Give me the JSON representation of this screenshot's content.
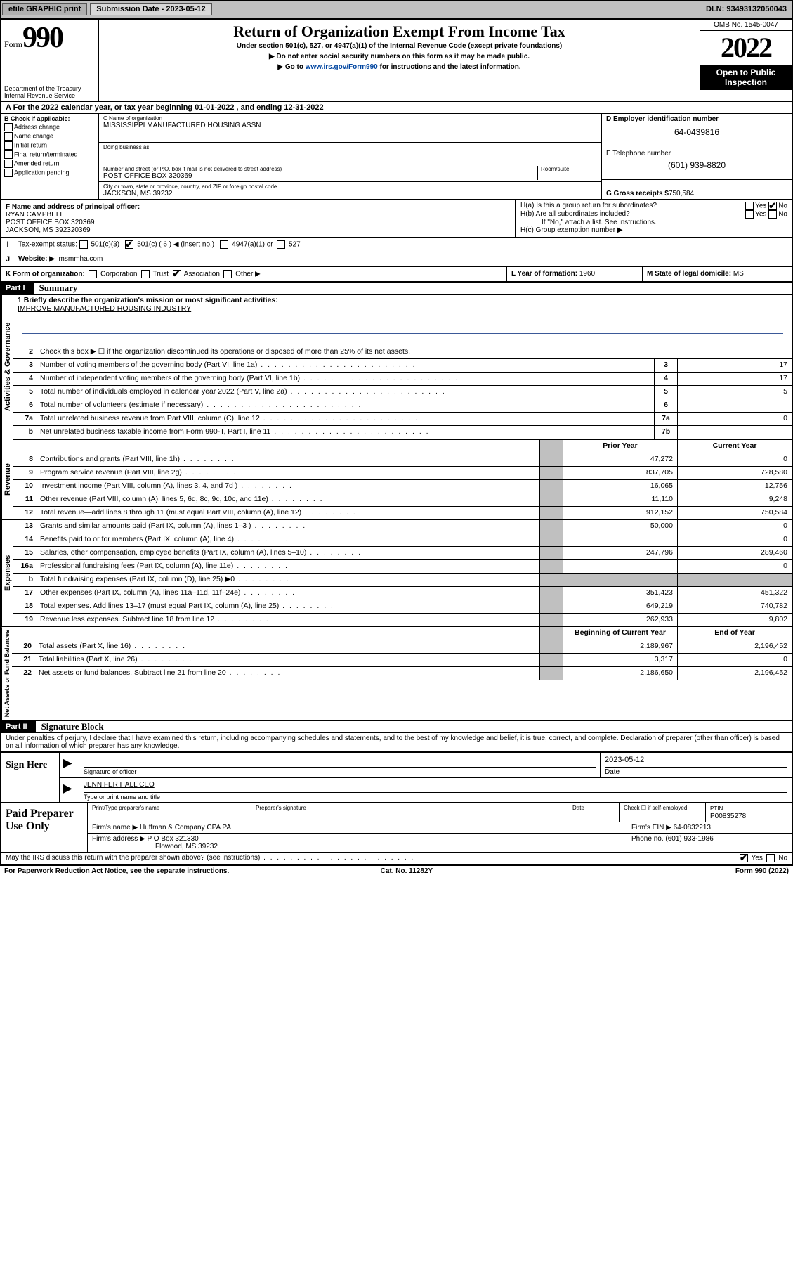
{
  "topbar": {
    "efile": "efile GRAPHIC print",
    "submission_label": "Submission Date - ",
    "submission_date": "2023-05-12",
    "dln_label": "DLN: ",
    "dln": "93493132050043"
  },
  "header": {
    "form_word": "Form",
    "form_num": "990",
    "dept": "Department of the Treasury\nInternal Revenue Service",
    "title": "Return of Organization Exempt From Income Tax",
    "sub1": "Under section 501(c), 527, or 4947(a)(1) of the Internal Revenue Code (except private foundations)",
    "sub2": "Do not enter social security numbers on this form as it may be made public.",
    "sub3_pre": "Go to ",
    "sub3_link": "www.irs.gov/Form990",
    "sub3_post": " for instructions and the latest information.",
    "omb": "OMB No. 1545-0047",
    "year": "2022",
    "open_public": "Open to Public Inspection"
  },
  "secA": {
    "text_pre": "A For the 2022 calendar year, or tax year beginning ",
    "begin": "01-01-2022",
    "mid": " , and ending ",
    "end": "12-31-2022"
  },
  "colB": {
    "title": "B Check if applicable:",
    "opts": [
      "Address change",
      "Name change",
      "Initial return",
      "Final return/terminated",
      "Amended return",
      "Application pending"
    ]
  },
  "colC": {
    "name_lbl": "C Name of organization",
    "name": "MISSISSIPPI MANUFACTURED HOUSING ASSN",
    "dba_lbl": "Doing business as",
    "addr_lbl": "Number and street (or P.O. box if mail is not delivered to street address)",
    "room_lbl": "Room/suite",
    "addr": "POST OFFICE BOX 320369",
    "city_lbl": "City or town, state or province, country, and ZIP or foreign postal code",
    "city": "JACKSON, MS  39232"
  },
  "colD": {
    "ein_lbl": "D Employer identification number",
    "ein": "64-0439816",
    "tel_lbl": "E Telephone number",
    "tel": "(601) 939-8820",
    "gross_lbl": "G Gross receipts $ ",
    "gross": "750,584"
  },
  "rowF": {
    "lbl": "F Name and address of principal officer:",
    "name": "RYAN CAMPBELL",
    "addr1": "POST OFFICE BOX 320369",
    "addr2": "JACKSON, MS  392320369"
  },
  "rowH": {
    "ha": "H(a)  Is this a group return for subordinates?",
    "hb": "H(b)  Are all subordinates included?",
    "hb2": "If \"No,\" attach a list. See instructions.",
    "hc": "H(c)  Group exemption number ▶"
  },
  "rowI": {
    "lbl": "Tax-exempt status:",
    "opts": [
      "501(c)(3)",
      "501(c) ( 6 ) ◀ (insert no.)",
      "4947(a)(1) or",
      "527"
    ]
  },
  "rowJ": {
    "lbl": "Website: ▶",
    "val": "msmmha.com"
  },
  "rowK": {
    "lbl": "K Form of organization:",
    "opts": [
      "Corporation",
      "Trust",
      "Association",
      "Other ▶"
    ],
    "L": "L Year of formation: ",
    "Lval": "1960",
    "M": "M State of legal domicile: ",
    "Mval": "MS"
  },
  "part1": {
    "hdr": "Part I",
    "title": "Summary",
    "mission_lbl": "1  Briefly describe the organization's mission or most significant activities:",
    "mission": "IMPROVE MANUFACTURED HOUSING INDUSTRY",
    "line2": "Check this box ▶ ☐  if the organization discontinued its operations or disposed of more than 25% of its net assets.",
    "gov_label": "Activities & Governance",
    "rev_label": "Revenue",
    "exp_label": "Expenses",
    "nab_label": "Net Assets or Fund Balances",
    "gov_lines": [
      {
        "n": "3",
        "d": "Number of voting members of the governing body (Part VI, line 1a)",
        "r": "3",
        "v": "17"
      },
      {
        "n": "4",
        "d": "Number of independent voting members of the governing body (Part VI, line 1b)",
        "r": "4",
        "v": "17"
      },
      {
        "n": "5",
        "d": "Total number of individuals employed in calendar year 2022 (Part V, line 2a)",
        "r": "5",
        "v": "5"
      },
      {
        "n": "6",
        "d": "Total number of volunteers (estimate if necessary)",
        "r": "6",
        "v": ""
      },
      {
        "n": "7a",
        "d": "Total unrelated business revenue from Part VIII, column (C), line 12",
        "r": "7a",
        "v": "0"
      },
      {
        "n": "b",
        "d": "Net unrelated business taxable income from Form 990-T, Part I, line 11",
        "r": "7b",
        "v": ""
      }
    ],
    "col_hdr": {
      "py": "Prior Year",
      "cy": "Current Year"
    },
    "rev_lines": [
      {
        "n": "8",
        "d": "Contributions and grants (Part VIII, line 1h)",
        "py": "47,272",
        "cy": "0"
      },
      {
        "n": "9",
        "d": "Program service revenue (Part VIII, line 2g)",
        "py": "837,705",
        "cy": "728,580"
      },
      {
        "n": "10",
        "d": "Investment income (Part VIII, column (A), lines 3, 4, and 7d )",
        "py": "16,065",
        "cy": "12,756"
      },
      {
        "n": "11",
        "d": "Other revenue (Part VIII, column (A), lines 5, 6d, 8c, 9c, 10c, and 11e)",
        "py": "11,110",
        "cy": "9,248"
      },
      {
        "n": "12",
        "d": "Total revenue—add lines 8 through 11 (must equal Part VIII, column (A), line 12)",
        "py": "912,152",
        "cy": "750,584"
      }
    ],
    "exp_lines": [
      {
        "n": "13",
        "d": "Grants and similar amounts paid (Part IX, column (A), lines 1–3 )",
        "py": "50,000",
        "cy": "0"
      },
      {
        "n": "14",
        "d": "Benefits paid to or for members (Part IX, column (A), line 4)",
        "py": "",
        "cy": "0"
      },
      {
        "n": "15",
        "d": "Salaries, other compensation, employee benefits (Part IX, column (A), lines 5–10)",
        "py": "247,796",
        "cy": "289,460"
      },
      {
        "n": "16a",
        "d": "Professional fundraising fees (Part IX, column (A), line 11e)",
        "py": "",
        "cy": "0"
      },
      {
        "n": "b",
        "d": "Total fundraising expenses (Part IX, column (D), line 25) ▶0",
        "py": "GRAY",
        "cy": "GRAY"
      },
      {
        "n": "17",
        "d": "Other expenses (Part IX, column (A), lines 11a–11d, 11f–24e)",
        "py": "351,423",
        "cy": "451,322"
      },
      {
        "n": "18",
        "d": "Total expenses. Add lines 13–17 (must equal Part IX, column (A), line 25)",
        "py": "649,219",
        "cy": "740,782"
      },
      {
        "n": "19",
        "d": "Revenue less expenses. Subtract line 18 from line 12",
        "py": "262,933",
        "cy": "9,802"
      }
    ],
    "nab_hdr": {
      "b": "Beginning of Current Year",
      "e": "End of Year"
    },
    "nab_lines": [
      {
        "n": "20",
        "d": "Total assets (Part X, line 16)",
        "b": "2,189,967",
        "e": "2,196,452"
      },
      {
        "n": "21",
        "d": "Total liabilities (Part X, line 26)",
        "b": "3,317",
        "e": "0"
      },
      {
        "n": "22",
        "d": "Net assets or fund balances. Subtract line 21 from line 20",
        "b": "2,186,650",
        "e": "2,196,452"
      }
    ]
  },
  "part2": {
    "hdr": "Part II",
    "title": "Signature Block",
    "penalty": "Under penalties of perjury, I declare that I have examined this return, including accompanying schedules and statements, and to the best of my knowledge and belief, it is true, correct, and complete. Declaration of preparer (other than officer) is based on all information of which preparer has any knowledge.",
    "sign_here": "Sign Here",
    "sig_officer_lbl": "Signature of officer",
    "sig_date": "2023-05-12",
    "sig_date_lbl": "Date",
    "sig_name": "JENNIFER HALL CEO",
    "sig_name_lbl": "Type or print name and title",
    "paid_prep": "Paid Preparer Use Only",
    "prep_name_lbl": "Print/Type preparer's name",
    "prep_sig_lbl": "Preparer's signature",
    "prep_date_lbl": "Date",
    "self_emp": "Check ☐ if self-employed",
    "ptin_lbl": "PTIN",
    "ptin": "P00835278",
    "firm_name_lbl": "Firm's name    ▶ ",
    "firm_name": "Huffman & Company CPA PA",
    "firm_ein_lbl": "Firm's EIN ▶ ",
    "firm_ein": "64-0832213",
    "firm_addr_lbl": "Firm's address ▶ ",
    "firm_addr1": "P O Box 321330",
    "firm_addr2": "Flowood, MS  39232",
    "phone_lbl": "Phone no. ",
    "phone": "(601) 933-1986",
    "may_irs": "May the IRS discuss this return with the preparer shown above? (see instructions)"
  },
  "footer": {
    "pra": "For Paperwork Reduction Act Notice, see the separate instructions.",
    "cat": "Cat. No. 11282Y",
    "form": "Form 990 (2022)"
  }
}
